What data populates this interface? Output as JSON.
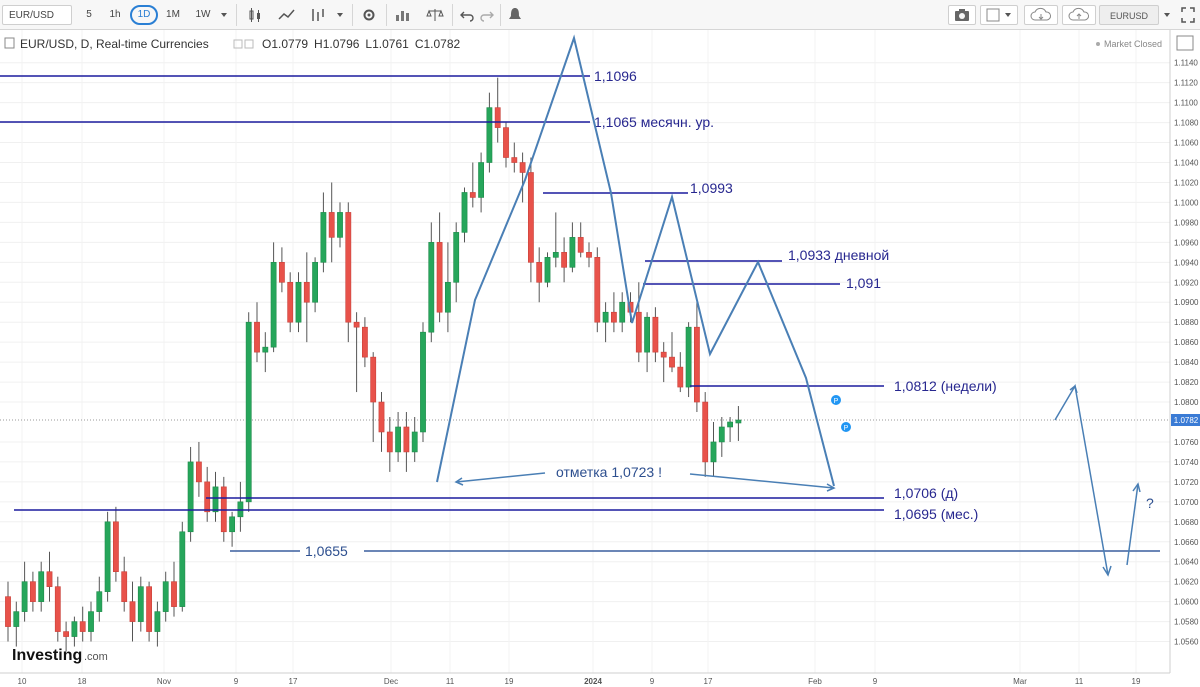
{
  "toolbar": {
    "symbol": "EUR/USD",
    "intervals": [
      "5",
      "1h",
      "1D",
      "1M",
      "1W"
    ],
    "selected_interval": "1D",
    "layout_name": "EURUSD copy"
  },
  "legend": {
    "title": "EUR/USD, D, Real-time Currencies",
    "ohlc": [
      {
        "k": "O",
        "v": "1.0779"
      },
      {
        "k": "H",
        "v": "1.0796"
      },
      {
        "k": "L",
        "v": "1.0761"
      },
      {
        "k": "C",
        "v": "1.0782"
      }
    ]
  },
  "status": {
    "market": "Market Closed"
  },
  "watermark": {
    "brand": "Investing",
    "suffix": ".com"
  },
  "price_axis": {
    "labels": [
      "1.1140",
      "1.1120",
      "1.1100",
      "1.1080",
      "1.1060",
      "1.1040",
      "1.1020",
      "1.1000",
      "1.0980",
      "1.0960",
      "1.0940",
      "1.0920",
      "1.0900",
      "1.0880",
      "1.0860",
      "1.0840",
      "1.0820",
      "1.0800",
      "1.0760",
      "1.0740",
      "1.0720",
      "1.0700",
      "1.0680",
      "1.0660",
      "1.0640",
      "1.0620",
      "1.0600",
      "1.0580",
      "1.0560"
    ],
    "current": "1.0782"
  },
  "time_axis": {
    "labels": [
      "10",
      "18",
      "Nov",
      "9",
      "17",
      "Dec",
      "11",
      "19",
      "2024",
      "9",
      "17",
      "Feb",
      "9",
      "Mar",
      "11",
      "19"
    ]
  },
  "annotations": {
    "l1096": "1,1096",
    "l1065": "1,1065 месячн. ур.",
    "l0993": "1,0993",
    "l0933": "1,0933 дневной",
    "l091": "1,091",
    "l0812": "1,0812 (недели)",
    "l0706": "1,0706 (д)",
    "l0695": "1,0695 (мес.)",
    "l0655": "1,0655",
    "mark": "отметка 1,0723 !",
    "question": "?"
  },
  "markers": {
    "p": "P"
  },
  "colors": {
    "up": "#26a65b",
    "down": "#e8524a",
    "line_dark": "#1c1c9e",
    "line_light": "#3a5f9e",
    "pattern": "#4a7fb5"
  },
  "chart_data": {
    "type": "candlestick",
    "interval": "1D",
    "y_unit": "EUR/USD",
    "x_labels": [
      "10",
      "18",
      "Nov",
      "9",
      "17",
      "Dec",
      "11",
      "19",
      "2024",
      "9",
      "17",
      "Feb",
      "9",
      "Mar",
      "11",
      "19"
    ],
    "candles": [
      [
        1.0605,
        1.062,
        1.056,
        1.0575
      ],
      [
        1.0575,
        1.06,
        1.0555,
        1.059
      ],
      [
        1.059,
        1.064,
        1.058,
        1.062
      ],
      [
        1.062,
        1.063,
        1.059,
        1.06
      ],
      [
        1.06,
        1.064,
        1.059,
        1.063
      ],
      [
        1.063,
        1.065,
        1.06,
        1.0615
      ],
      [
        1.0615,
        1.0625,
        1.056,
        1.057
      ],
      [
        1.057,
        1.058,
        1.055,
        1.0565
      ],
      [
        1.0565,
        1.0585,
        1.0555,
        1.058
      ],
      [
        1.058,
        1.0595,
        1.056,
        1.057
      ],
      [
        1.057,
        1.06,
        1.056,
        1.059
      ],
      [
        1.059,
        1.0625,
        1.058,
        1.061
      ],
      [
        1.061,
        1.069,
        1.06,
        1.068
      ],
      [
        1.068,
        1.0695,
        1.062,
        1.063
      ],
      [
        1.063,
        1.0645,
        1.059,
        1.06
      ],
      [
        1.06,
        1.062,
        1.056,
        1.058
      ],
      [
        1.058,
        1.0625,
        1.057,
        1.0615
      ],
      [
        1.0615,
        1.062,
        1.056,
        1.057
      ],
      [
        1.057,
        1.06,
        1.0555,
        1.059
      ],
      [
        1.059,
        1.063,
        1.058,
        1.062
      ],
      [
        1.062,
        1.064,
        1.0585,
        1.0595
      ],
      [
        1.0595,
        1.068,
        1.059,
        1.067
      ],
      [
        1.067,
        1.0755,
        1.066,
        1.074
      ],
      [
        1.074,
        1.076,
        1.0705,
        1.072
      ],
      [
        1.072,
        1.0735,
        1.068,
        1.069
      ],
      [
        1.069,
        1.073,
        1.068,
        1.0715
      ],
      [
        1.0715,
        1.0725,
        1.066,
        1.067
      ],
      [
        1.067,
        1.069,
        1.0655,
        1.0685
      ],
      [
        1.0685,
        1.072,
        1.067,
        1.07
      ],
      [
        1.07,
        1.089,
        1.069,
        1.088
      ],
      [
        1.088,
        1.09,
        1.084,
        1.085
      ],
      [
        1.085,
        1.087,
        1.083,
        1.0855
      ],
      [
        1.0855,
        1.096,
        1.085,
        1.094
      ],
      [
        1.094,
        1.0955,
        1.091,
        1.092
      ],
      [
        1.092,
        1.093,
        1.087,
        1.088
      ],
      [
        1.088,
        1.093,
        1.087,
        1.092
      ],
      [
        1.092,
        1.095,
        1.086,
        1.09
      ],
      [
        1.09,
        1.0945,
        1.089,
        1.094
      ],
      [
        1.094,
        1.101,
        1.093,
        1.099
      ],
      [
        1.099,
        1.102,
        1.094,
        1.0965
      ],
      [
        1.0965,
        1.1,
        1.0955,
        1.099
      ],
      [
        1.099,
        1.1,
        1.086,
        1.088
      ],
      [
        1.088,
        1.089,
        1.081,
        1.0875
      ],
      [
        1.0875,
        1.0885,
        1.0835,
        1.0845
      ],
      [
        1.0845,
        1.085,
        1.076,
        1.08
      ],
      [
        1.08,
        1.081,
        1.075,
        1.077
      ],
      [
        1.077,
        1.0785,
        1.073,
        1.075
      ],
      [
        1.075,
        1.079,
        1.074,
        1.0775
      ],
      [
        1.0775,
        1.079,
        1.073,
        1.075
      ],
      [
        1.075,
        1.0785,
        1.074,
        1.077
      ],
      [
        1.077,
        1.088,
        1.076,
        1.087
      ],
      [
        1.087,
        1.098,
        1.086,
        1.096
      ],
      [
        1.096,
        1.099,
        1.088,
        1.089
      ],
      [
        1.089,
        1.096,
        1.087,
        1.092
      ],
      [
        1.092,
        1.098,
        1.09,
        1.097
      ],
      [
        1.097,
        1.1015,
        1.096,
        1.101
      ],
      [
        1.101,
        1.104,
        1.0995,
        1.1005
      ],
      [
        1.1005,
        1.105,
        1.099,
        1.104
      ],
      [
        1.104,
        1.111,
        1.103,
        1.1095
      ],
      [
        1.1095,
        1.1125,
        1.106,
        1.1075
      ],
      [
        1.1075,
        1.108,
        1.1035,
        1.1045
      ],
      [
        1.1045,
        1.106,
        1.103,
        1.104
      ],
      [
        1.104,
        1.105,
        1.1,
        1.103
      ],
      [
        1.103,
        1.1045,
        1.092,
        1.094
      ],
      [
        1.094,
        1.0955,
        1.09,
        1.092
      ],
      [
        1.092,
        1.095,
        1.0915,
        1.0945
      ],
      [
        1.0945,
        1.099,
        1.0935,
        1.095
      ],
      [
        1.095,
        1.0965,
        1.092,
        1.0935
      ],
      [
        1.0935,
        1.098,
        1.093,
        1.0965
      ],
      [
        1.0965,
        1.098,
        1.0945,
        1.095
      ],
      [
        1.095,
        1.096,
        1.0935,
        1.0945
      ],
      [
        1.0945,
        1.0955,
        1.087,
        1.088
      ],
      [
        1.088,
        1.09,
        1.086,
        1.089
      ],
      [
        1.089,
        1.091,
        1.087,
        1.088
      ],
      [
        1.088,
        1.091,
        1.087,
        1.09
      ],
      [
        1.09,
        1.091,
        1.088,
        1.089
      ],
      [
        1.089,
        1.092,
        1.084,
        1.085
      ],
      [
        1.085,
        1.089,
        1.083,
        1.0885
      ],
      [
        1.0885,
        1.0895,
        1.084,
        1.085
      ],
      [
        1.085,
        1.086,
        1.082,
        1.0845
      ],
      [
        1.0845,
        1.087,
        1.083,
        1.0835
      ],
      [
        1.0835,
        1.085,
        1.081,
        1.0815
      ],
      [
        1.0815,
        1.088,
        1.0805,
        1.0875
      ],
      [
        1.0875,
        1.09,
        1.079,
        1.08
      ],
      [
        1.08,
        1.081,
        1.0725,
        1.074
      ],
      [
        1.074,
        1.078,
        1.0725,
        1.076
      ],
      [
        1.076,
        1.0785,
        1.0745,
        1.0775
      ],
      [
        1.0775,
        1.0785,
        1.076,
        1.078
      ],
      [
        1.0779,
        1.0796,
        1.0761,
        1.0782
      ]
    ],
    "horizontal_levels": [
      1.1096,
      1.1065,
      1.0993,
      1.0933,
      1.091,
      1.0812,
      1.0706,
      1.0695,
      1.0655
    ],
    "ylim": [
      1.0545,
      1.115
    ]
  }
}
